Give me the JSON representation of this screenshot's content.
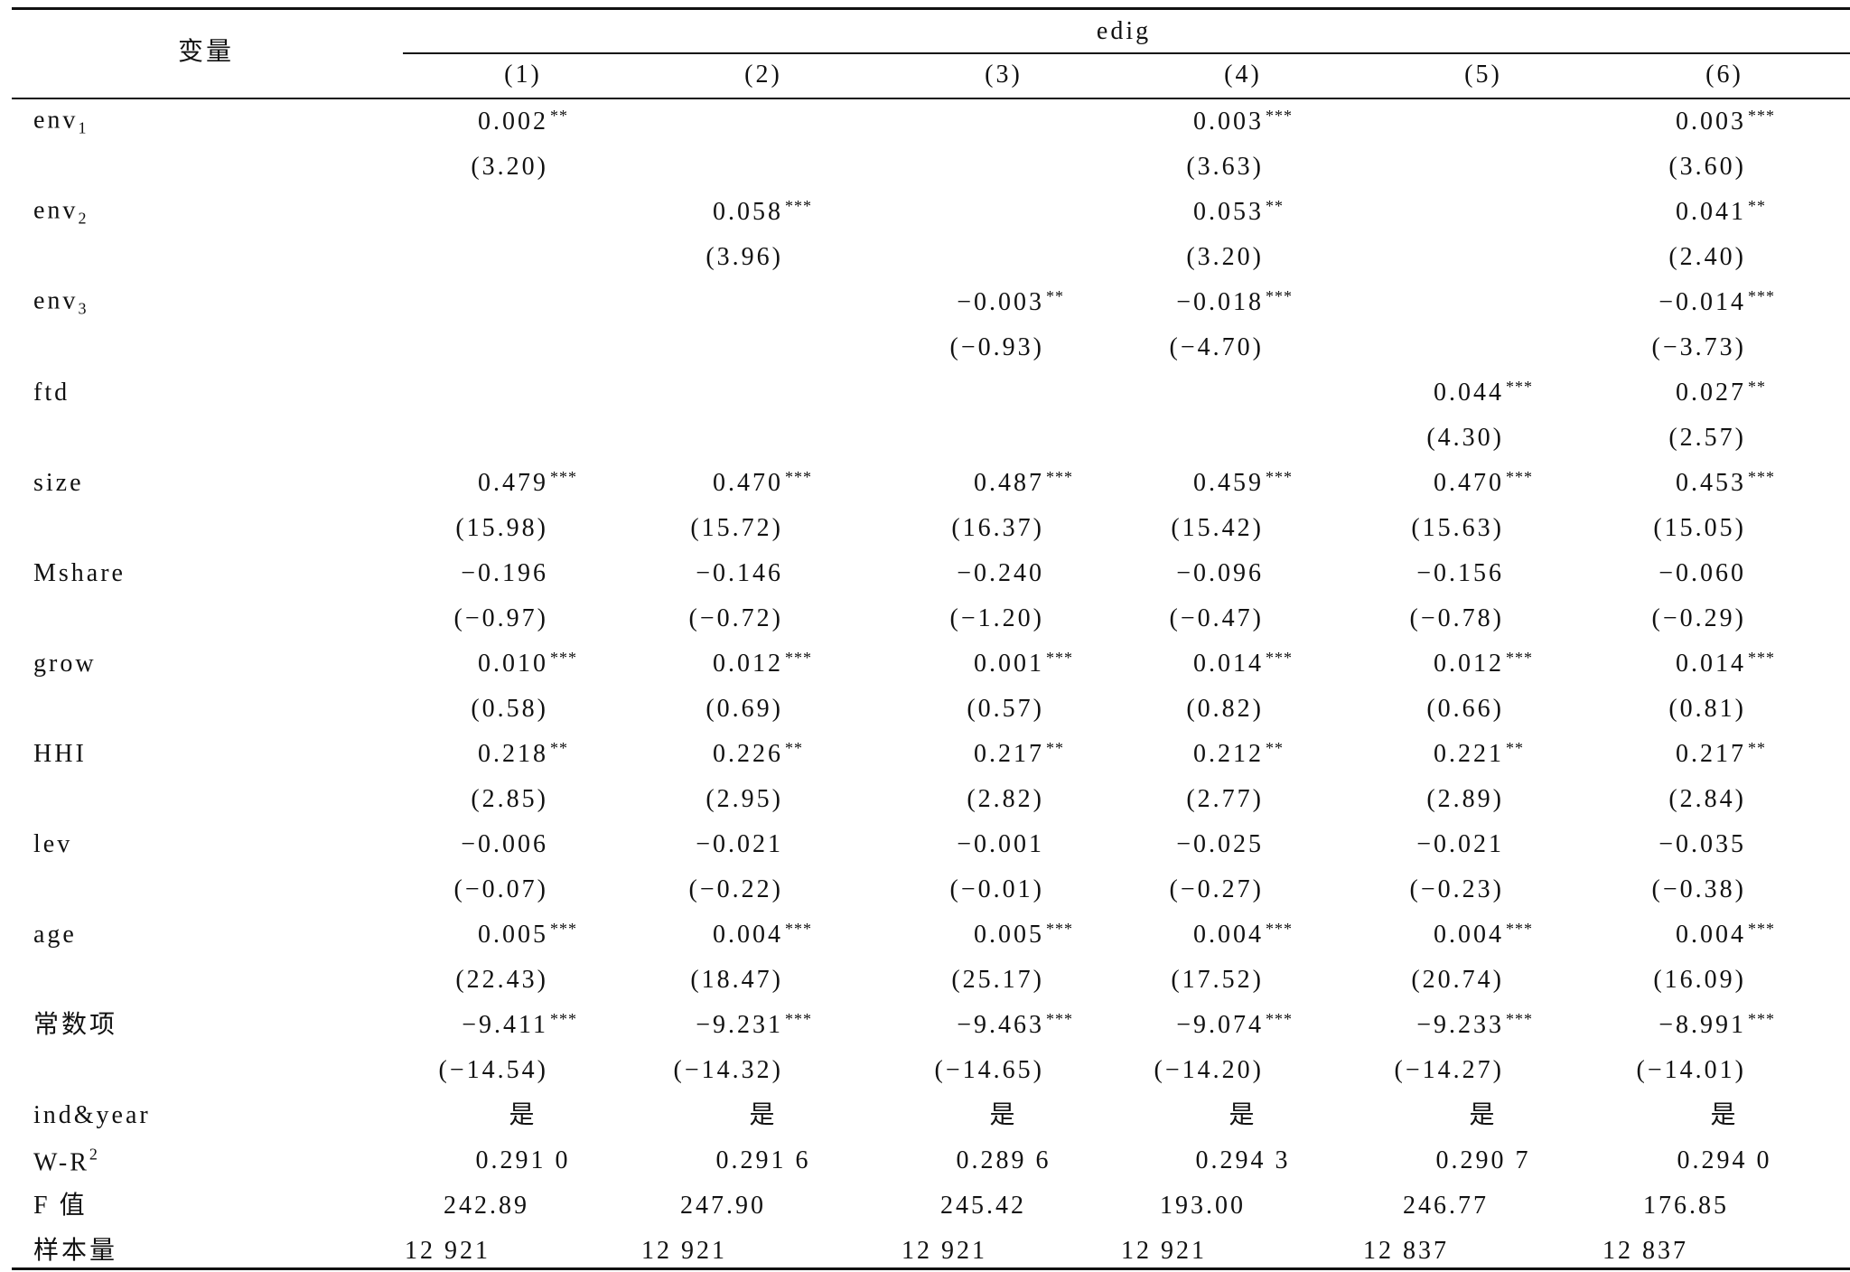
{
  "header": {
    "stub": "变量",
    "group": "edig",
    "columns": [
      "(1)",
      "(2)",
      "(3)",
      "(4)",
      "(5)",
      "(6)"
    ]
  },
  "table": {
    "rows": [
      {
        "label": {
          "text": "env",
          "sub": "1"
        },
        "cells": [
          {
            "coef": "0.002",
            "stars": "**",
            "t": "(3.20)"
          },
          null,
          null,
          {
            "coef": "0.003",
            "stars": "***",
            "t": "(3.63)"
          },
          null,
          {
            "coef": "0.003",
            "stars": "***",
            "t": "(3.60)"
          }
        ]
      },
      {
        "label": {
          "text": "env",
          "sub": "2"
        },
        "cells": [
          null,
          {
            "coef": "0.058",
            "stars": "***",
            "t": "(3.96)"
          },
          null,
          {
            "coef": "0.053",
            "stars": "**",
            "t": "(3.20)"
          },
          null,
          {
            "coef": "0.041",
            "stars": "**",
            "t": "(2.40)"
          }
        ]
      },
      {
        "label": {
          "text": "env",
          "sub": "3"
        },
        "cells": [
          null,
          null,
          {
            "coef": "−0.003",
            "stars": "**",
            "t": "(−0.93)"
          },
          {
            "coef": "−0.018",
            "stars": "***",
            "t": "(−4.70)"
          },
          null,
          {
            "coef": "−0.014",
            "stars": "***",
            "t": "(−3.73)"
          }
        ]
      },
      {
        "label": {
          "text": "ftd"
        },
        "cells": [
          null,
          null,
          null,
          null,
          {
            "coef": "0.044",
            "stars": "***",
            "t": "(4.30)"
          },
          {
            "coef": "0.027",
            "stars": "**",
            "t": "(2.57)"
          }
        ]
      },
      {
        "label": {
          "text": "size"
        },
        "cells": [
          {
            "coef": "0.479",
            "stars": "***",
            "t": "(15.98)"
          },
          {
            "coef": "0.470",
            "stars": "***",
            "t": "(15.72)"
          },
          {
            "coef": "0.487",
            "stars": "***",
            "t": "(16.37)"
          },
          {
            "coef": "0.459",
            "stars": "***",
            "t": "(15.42)"
          },
          {
            "coef": "0.470",
            "stars": "***",
            "t": "(15.63)"
          },
          {
            "coef": "0.453",
            "stars": "***",
            "t": "(15.05)"
          }
        ]
      },
      {
        "label": {
          "text": "Mshare"
        },
        "cells": [
          {
            "coef": "−0.196",
            "t": "(−0.97)"
          },
          {
            "coef": "−0.146",
            "t": "(−0.72)"
          },
          {
            "coef": "−0.240",
            "t": "(−1.20)"
          },
          {
            "coef": "−0.096",
            "t": "(−0.47)"
          },
          {
            "coef": "−0.156",
            "t": "(−0.78)"
          },
          {
            "coef": "−0.060",
            "t": "(−0.29)"
          }
        ]
      },
      {
        "label": {
          "text": "grow"
        },
        "cells": [
          {
            "coef": "0.010",
            "stars": "***",
            "t": "(0.58)"
          },
          {
            "coef": "0.012",
            "stars": "***",
            "t": "(0.69)"
          },
          {
            "coef": "0.001",
            "stars": "***",
            "t": "(0.57)"
          },
          {
            "coef": "0.014",
            "stars": "***",
            "t": "(0.82)"
          },
          {
            "coef": "0.012",
            "stars": "***",
            "t": "(0.66)"
          },
          {
            "coef": "0.014",
            "stars": "***",
            "t": "(0.81)"
          }
        ]
      },
      {
        "label": {
          "text": "HHI"
        },
        "cells": [
          {
            "coef": "0.218",
            "stars": "**",
            "t": "(2.85)"
          },
          {
            "coef": "0.226",
            "stars": "**",
            "t": "(2.95)"
          },
          {
            "coef": "0.217",
            "stars": "**",
            "t": "(2.82)"
          },
          {
            "coef": "0.212",
            "stars": "**",
            "t": "(2.77)"
          },
          {
            "coef": "0.221",
            "stars": "**",
            "t": "(2.89)"
          },
          {
            "coef": "0.217",
            "stars": "**",
            "t": "(2.84)"
          }
        ]
      },
      {
        "label": {
          "text": "lev"
        },
        "cells": [
          {
            "coef": "−0.006",
            "t": "(−0.07)"
          },
          {
            "coef": "−0.021",
            "t": "(−0.22)"
          },
          {
            "coef": "−0.001",
            "t": "(−0.01)"
          },
          {
            "coef": "−0.025",
            "t": "(−0.27)"
          },
          {
            "coef": "−0.021",
            "t": "(−0.23)"
          },
          {
            "coef": "−0.035",
            "t": "(−0.38)"
          }
        ]
      },
      {
        "label": {
          "text": "age"
        },
        "cells": [
          {
            "coef": "0.005",
            "stars": "***",
            "t": "(22.43)"
          },
          {
            "coef": "0.004",
            "stars": "***",
            "t": "(18.47)"
          },
          {
            "coef": "0.005",
            "stars": "***",
            "t": "(25.17)"
          },
          {
            "coef": "0.004",
            "stars": "***",
            "t": "(17.52)"
          },
          {
            "coef": "0.004",
            "stars": "***",
            "t": "(20.74)"
          },
          {
            "coef": "0.004",
            "stars": "***",
            "t": "(16.09)"
          }
        ]
      },
      {
        "label": {
          "text": "常数项"
        },
        "cells": [
          {
            "coef": "−9.411",
            "stars": "***",
            "t": "(−14.54)"
          },
          {
            "coef": "−9.231",
            "stars": "***",
            "t": "(−14.32)"
          },
          {
            "coef": "−9.463",
            "stars": "***",
            "t": "(−14.65)"
          },
          {
            "coef": "−9.074",
            "stars": "***",
            "t": "(−14.20)"
          },
          {
            "coef": "−9.233",
            "stars": "***",
            "t": "(−14.27)"
          },
          {
            "coef": "−8.991",
            "stars": "***",
            "t": "(−14.01)"
          }
        ]
      }
    ],
    "footer_rows": [
      {
        "label": {
          "text": "ind&year"
        },
        "values": [
          "是",
          "是",
          "是",
          "是",
          "是",
          "是"
        ]
      },
      {
        "label": {
          "text": "W-R",
          "sup": "2"
        },
        "values": [
          "0.291 0",
          "0.291 6",
          "0.289 6",
          "0.294 3",
          "0.290 7",
          "0.294 0"
        ]
      },
      {
        "label": {
          "text": "F 值"
        },
        "values": [
          "242.89",
          "247.90",
          "245.42",
          "193.00",
          "246.77",
          "176.85"
        ]
      },
      {
        "label": {
          "text": "样本量"
        },
        "values": [
          "12 921",
          "12 921",
          "12 921",
          "12 921",
          "12 837",
          "12 837"
        ]
      }
    ]
  }
}
